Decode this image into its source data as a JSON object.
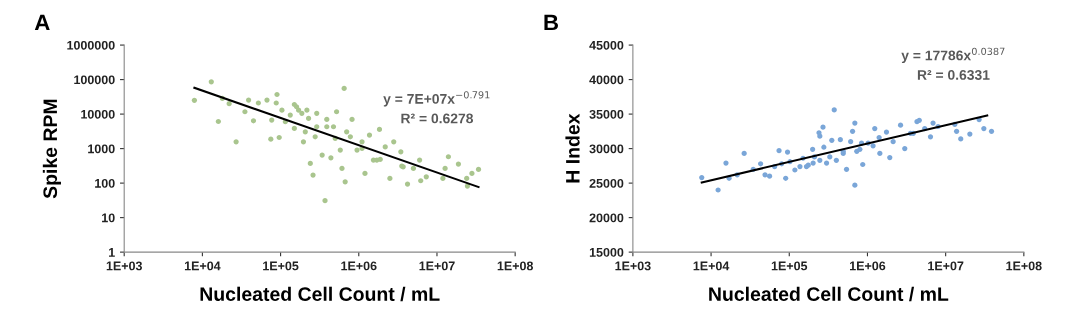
{
  "chart_data": [
    {
      "type": "scatter",
      "title": "A",
      "xlabel": "Nucleated Cell Count / mL",
      "ylabel": "Spike RPM",
      "log": "xy",
      "grid": false,
      "xlim": [
        1000,
        100000000
      ],
      "xticks": [
        {
          "value": 1000,
          "label": "1E+03"
        },
        {
          "value": 10000,
          "label": "1E+04"
        },
        {
          "value": 100000,
          "label": "1E+05"
        },
        {
          "value": 1000000,
          "label": "1E+06"
        },
        {
          "value": 10000000,
          "label": "1E+07"
        },
        {
          "value": 100000000,
          "label": "1E+08"
        }
      ],
      "ylim": [
        1,
        1000000
      ],
      "yticks": [
        1,
        10,
        100,
        1000,
        10000,
        100000,
        1000000
      ],
      "annotations": [
        "y = 7E+07x$^{−0.791}$",
        "R² = 0.6278"
      ],
      "series": [
        {
          "marker": "circle",
          "color": "#a9c58e",
          "x": [
            7900,
            13000,
            16000,
            18000,
            22000,
            27000,
            35000,
            39000,
            45000,
            52000,
            67000,
            75000,
            77000,
            90000,
            88000,
            96000,
            104000,
            115000,
            133000,
            150000,
            150000,
            170000,
            196000,
            207000,
            228000,
            240000,
            260000,
            277000,
            290000,
            340000,
            370000,
            390000,
            440000,
            500000,
            520000,
            580000,
            610000,
            650000,
            670000,
            700000,
            820000,
            950000,
            1100000,
            1200000,
            1370000,
            1540000,
            1840000,
            1880000,
            2180000,
            2500000,
            2800000,
            3450000,
            3550000,
            4200000,
            5000000,
            6000000,
            6200000,
            7300000,
            11900000,
            12700000,
            14000000,
            18800000,
            24000000,
            24500000,
            28000000,
            34000000,
            160000,
            187000,
            217000,
            290000,
            390000,
            475000,
            780000,
            1100000,
            1700000,
            3700000
          ],
          "values": [
            25000,
            86000,
            6100,
            28500,
            20000,
            1570,
            11700,
            25500,
            6400,
            21000,
            25500,
            1880,
            6700,
            37000,
            21000,
            2100,
            13000,
            6000,
            9350,
            19000,
            3850,
            13000,
            1570,
            3070,
            7500,
            372,
            171,
            2200,
            10500,
            650,
            31,
            4300,
            540,
            1970,
            11700,
            906,
            267,
            55600,
            109,
            3070,
            7000,
            906,
            1570,
            191,
            2460,
            465,
            3600,
            487,
            1120,
            137,
            1570,
            807,
            311,
            94,
            267,
            465,
            117,
            152,
            137,
            267,
            580,
            356,
            137,
            82,
            191,
            250,
            16300,
            10500,
            13000,
            4300,
            7000,
            4300,
            2200,
            1010,
            465,
            297
          ]
        },
        {
          "type": "line",
          "color": "#000000",
          "x": [
            7900,
            34000000
          ],
          "values": [
            57800,
            77
          ]
        }
      ]
    },
    {
      "type": "scatter",
      "title": "B",
      "xlabel": "Nucleated Cell Count / mL",
      "ylabel": "H Index",
      "log": "x",
      "grid": false,
      "xlim": [
        1000,
        100000000
      ],
      "xticks": [
        {
          "value": 1000,
          "label": "1E+03"
        },
        {
          "value": 10000,
          "label": "1E+04"
        },
        {
          "value": 100000,
          "label": "1E+05"
        },
        {
          "value": 1000000,
          "label": "1E+06"
        },
        {
          "value": 10000000,
          "label": "1E+07"
        },
        {
          "value": 100000000,
          "label": "1E+08"
        }
      ],
      "ylim": [
        15000,
        45000
      ],
      "yticks": [
        15000,
        20000,
        25000,
        30000,
        35000,
        40000,
        45000
      ],
      "annotations": [
        "y = 17786x$^{0.0387}$",
        "R² = 0.6331"
      ],
      "series": [
        {
          "marker": "circle",
          "color": "#7aa6d8",
          "x": [
            7600,
            12300,
            15500,
            17000,
            21600,
            26500,
            34600,
            43000,
            49000,
            56000,
            65000,
            74000,
            80000,
            90000,
            95000,
            102000,
            118000,
            137000,
            150000,
            175000,
            199000,
            210000,
            240000,
            246000,
            270000,
            277000,
            300000,
            350000,
            376000,
            400000,
            450000,
            490000,
            540000,
            610000,
            645000,
            690000,
            690000,
            730000,
            840000,
            870000,
            1020000,
            1240000,
            1410000,
            1440000,
            1750000,
            1930000,
            2130000,
            2650000,
            3000000,
            3550000,
            4300000,
            4600000,
            5400000,
            6400000,
            6900000,
            8000000,
            13100000,
            13800000,
            15600000,
            20400000,
            26800000,
            30800000,
            38600000,
            166000,
            202000,
            246000,
            330000,
            490000,
            800000,
            1180000,
            3850000
          ],
          "values": [
            25800,
            24000,
            27900,
            25700,
            26200,
            29300,
            27000,
            27800,
            26200,
            26000,
            27400,
            29700,
            27800,
            25700,
            29500,
            28100,
            26900,
            27400,
            28600,
            27600,
            29900,
            28800,
            32300,
            31800,
            33100,
            30200,
            27900,
            31200,
            35600,
            28300,
            31300,
            29300,
            27000,
            31000,
            32500,
            33700,
            24700,
            29600,
            30800,
            27700,
            30800,
            32900,
            31600,
            29300,
            32400,
            28700,
            31000,
            33400,
            30000,
            32200,
            33900,
            34100,
            32900,
            31700,
            33700,
            33200,
            33500,
            32500,
            31400,
            32100,
            34200,
            32900,
            32500,
            27400,
            27900,
            28300,
            28800,
            29600,
            29900,
            30400,
            32200
          ]
        },
        {
          "type": "line",
          "color": "#000000",
          "x": [
            7600,
            34000000
          ],
          "values": [
            25100,
            34800
          ]
        }
      ]
    }
  ]
}
